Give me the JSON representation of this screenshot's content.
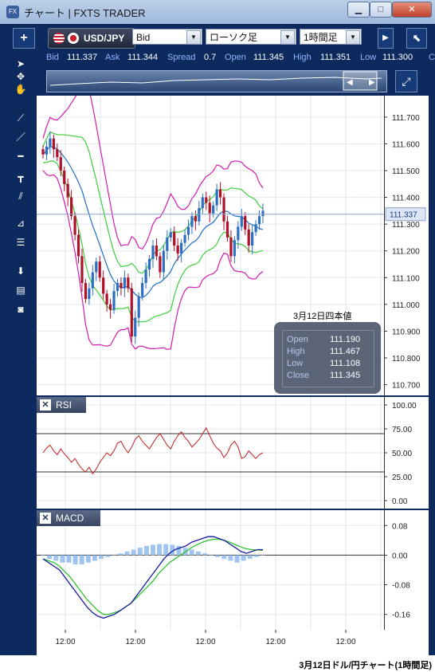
{
  "window": {
    "title": "チャート | FXTS TRADER",
    "icon": "fx-app-icon",
    "buttons": [
      "minimize",
      "maximize",
      "close"
    ]
  },
  "toolbar": {
    "add_label": "+",
    "pair": "USD/JPY",
    "price_type": "Bid",
    "chart_type": "ローソク足",
    "timeframe": "1時間足"
  },
  "quote": {
    "bid_label": "Bid",
    "bid": "111.337",
    "ask_label": "Ask",
    "ask": "111.344",
    "spread_label": "Spread",
    "spread": "0.7",
    "open_label": "Open",
    "open": "111.345",
    "high_label": "High",
    "high": "111.351",
    "low_label": "Low",
    "low": "111.300",
    "close_label": "C"
  },
  "sidebar_tools": [
    "cursor-icon",
    "crosshair-icon",
    "hand-icon",
    "trend-line-icon",
    "line-icon",
    "horizontal-line-icon",
    "vertical-line-icon",
    "channel-icon",
    "fibonacci-fan-icon",
    "fibonacci-retracement-icon",
    "download-icon",
    "list-icon",
    "camera-icon"
  ],
  "info_box": {
    "title": "3月12日四本値",
    "open_label": "Open",
    "open": "111.190",
    "high_label": "High",
    "high": "111.467",
    "low_label": "Low",
    "low": "111.108",
    "close_label": "Close",
    "close": "111.345"
  },
  "price_axis": {
    "ticks": [
      "111.700",
      "111.600",
      "111.500",
      "111.400",
      "111.300",
      "111.200",
      "111.100",
      "111.000",
      "110.900",
      "110.800",
      "110.700"
    ],
    "current": "111.337"
  },
  "rsi": {
    "label": "RSI",
    "ticks": [
      "100.00",
      "75.00",
      "50.00",
      "25.00",
      "0.00"
    ]
  },
  "macd": {
    "label": "MACD",
    "ticks": [
      "0.08",
      "0.00",
      "-0.08",
      "-0.16"
    ]
  },
  "time_axis": {
    "ticks": [
      "12:00",
      "12:00",
      "12:00",
      "12:00",
      "12:00"
    ]
  },
  "caption": "3月12日ドル/円チャート(1時間足)",
  "colors": {
    "frame": "#0d2a5e",
    "candle_up": "#2e6fc4",
    "candle_down": "#b0102a",
    "bollinger_outer": "#d21cae",
    "bollinger_inner": "#3ccf3c",
    "sma": "#1f6fc8",
    "rsi_line": "#c0201e",
    "macd_line": "#1a1aa0",
    "signal_line": "#2ec22e",
    "histogram": "#9fc4f0"
  },
  "chart_data": [
    {
      "type": "candlestick",
      "series": [
        {
          "name": "close",
          "values": [
            111.56,
            111.59,
            111.62,
            111.58,
            111.55,
            111.5,
            111.45,
            111.4,
            111.33,
            111.26,
            111.18,
            111.08,
            111.02,
            111.06,
            111.12,
            111.16,
            111.1,
            111.04,
            111.0,
            110.98,
            111.05,
            111.08,
            111.06,
            111.1,
            111.06,
            110.88,
            110.95,
            111.03,
            111.08,
            111.13,
            111.17,
            111.22,
            111.18,
            111.12,
            111.2,
            111.25,
            111.27,
            111.22,
            111.19,
            111.23,
            111.26,
            111.29,
            111.33,
            111.31,
            111.36,
            111.4,
            111.38,
            111.34,
            111.37,
            111.43,
            111.4,
            111.31,
            111.25,
            111.18,
            111.24,
            111.29,
            111.33,
            111.28,
            111.22,
            111.27,
            111.3,
            111.33,
            111.35
          ]
        }
      ],
      "yticks": [
        111.7,
        111.6,
        111.5,
        111.4,
        111.3,
        111.2,
        111.1,
        111.0,
        110.9,
        110.8,
        110.7
      ],
      "ylim": [
        110.66,
        111.78
      ]
    },
    {
      "type": "line",
      "name_on_chart": "RSI",
      "series": [
        {
          "values": [
            50,
            55,
            58,
            52,
            48,
            54,
            49,
            45,
            40,
            44,
            38,
            33,
            30,
            35,
            28,
            33,
            40,
            45,
            50,
            47,
            52,
            60,
            62,
            55,
            50,
            56,
            64,
            68,
            62,
            58,
            54,
            60,
            66,
            70,
            64,
            58,
            54,
            62,
            68,
            72,
            66,
            62,
            56,
            60,
            64,
            70,
            76,
            68,
            60,
            55,
            52,
            45,
            50,
            58,
            62,
            56,
            44,
            46,
            52,
            48,
            44,
            48,
            50
          ]
        }
      ],
      "yticks": [
        100,
        75,
        50,
        25,
        0
      ],
      "ylim": [
        0,
        100
      ]
    },
    {
      "type": "line",
      "name_on_chart": "MACD",
      "series": [
        {
          "values": [
            -0.01,
            -0.02,
            -0.03,
            -0.04,
            -0.06,
            -0.08,
            -0.1,
            -0.12,
            -0.14,
            -0.155,
            -0.165,
            -0.17,
            -0.165,
            -0.16,
            -0.15,
            -0.14,
            -0.13,
            -0.11,
            -0.09,
            -0.07,
            -0.05,
            -0.03,
            -0.01,
            0.005,
            0.015,
            0.02,
            0.025,
            0.035,
            0.04,
            0.045,
            0.05,
            0.05,
            0.045,
            0.04,
            0.03,
            0.02,
            0.01,
            0.005,
            0.01,
            0.015,
            0.015
          ]
        },
        {
          "values": [
            -0.01,
            -0.015,
            -0.02,
            -0.03,
            -0.045,
            -0.06,
            -0.08,
            -0.1,
            -0.12,
            -0.135,
            -0.15,
            -0.16,
            -0.16,
            -0.155,
            -0.15,
            -0.14,
            -0.13,
            -0.115,
            -0.1,
            -0.085,
            -0.07,
            -0.05,
            -0.035,
            -0.02,
            -0.01,
            0.0,
            0.01,
            0.02,
            0.028,
            0.035,
            0.04,
            0.043,
            0.043,
            0.04,
            0.035,
            0.028,
            0.022,
            0.017,
            0.015,
            0.014,
            0.013
          ]
        },
        {
          "values": [
            0.0,
            -0.01,
            -0.015,
            -0.02,
            -0.02,
            -0.025,
            -0.025,
            -0.02,
            -0.015,
            -0.01,
            -0.005,
            0.0,
            0.005,
            0.01,
            0.015,
            0.02,
            0.025,
            0.028,
            0.03,
            0.03,
            0.028,
            0.025,
            0.02,
            0.015,
            0.01,
            0.005,
            0.0,
            -0.005,
            -0.01,
            -0.015,
            -0.02,
            -0.015,
            -0.01,
            -0.005,
            0.0
          ]
        }
      ],
      "yticks": [
        0.08,
        0.0,
        -0.08,
        -0.16
      ],
      "ylim": [
        -0.18,
        0.1
      ]
    }
  ]
}
